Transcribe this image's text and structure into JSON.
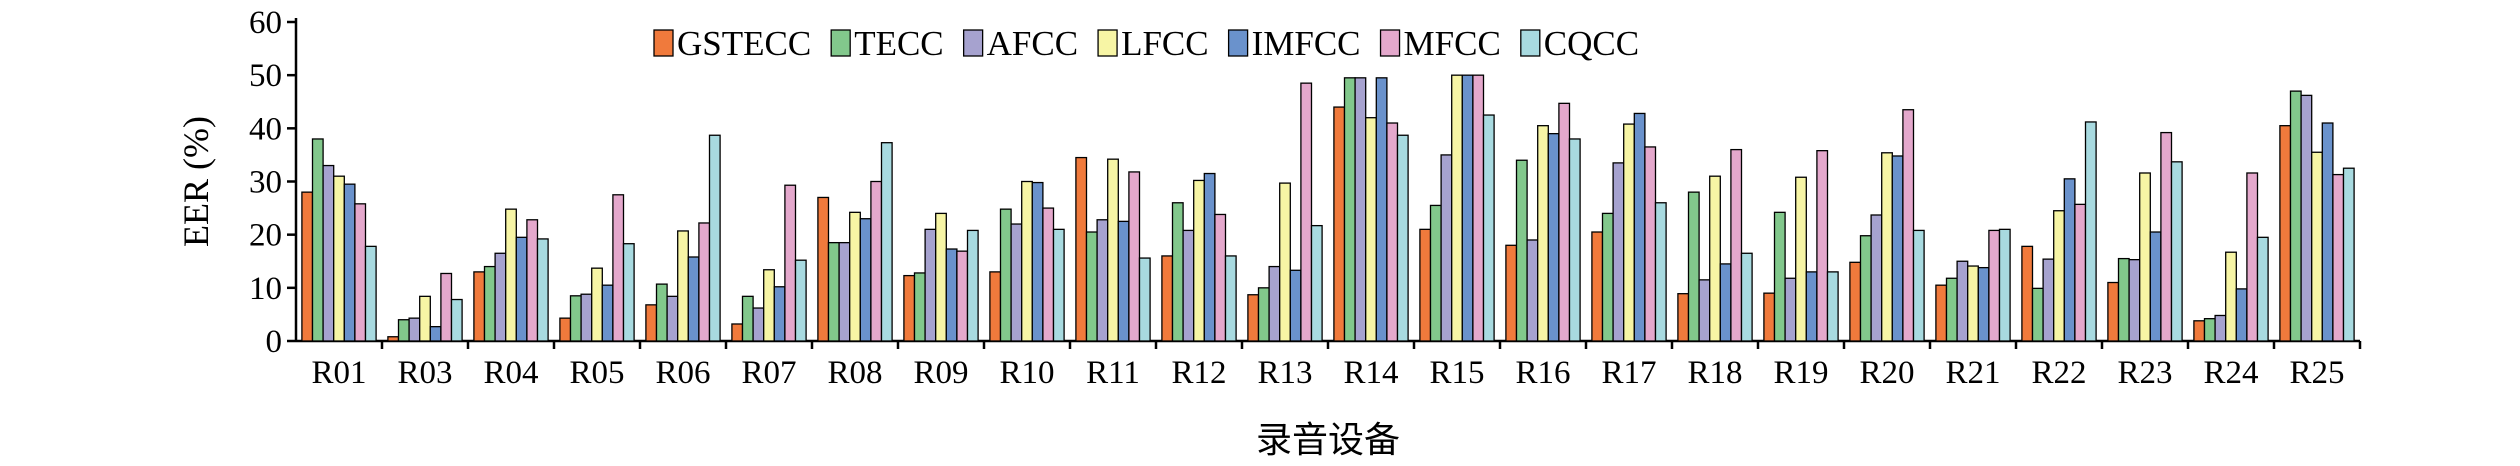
{
  "chart_data": {
    "type": "bar",
    "ylabel": "EER (%)",
    "xlabel": "录音设备",
    "ylim": [
      0,
      60
    ],
    "yticks": [
      "0",
      "10",
      "20",
      "30",
      "40",
      "50",
      "60"
    ],
    "legend_position": "top-center",
    "grid": false,
    "categories": [
      "R01",
      "R03",
      "R04",
      "R05",
      "R06",
      "R07",
      "R08",
      "R09",
      "R10",
      "R11",
      "R12",
      "R13",
      "R14",
      "R15",
      "R16",
      "R17",
      "R18",
      "R19",
      "R20",
      "R21",
      "R22",
      "R23",
      "R24",
      "R25"
    ],
    "series": [
      {
        "name": "GSTECC",
        "color": "#f07a3c",
        "values": [
          28,
          0.8,
          13,
          4.3,
          6.8,
          3.2,
          27,
          12.3,
          13,
          34.5,
          16,
          8.7,
          44,
          21,
          18,
          20.5,
          8.9,
          9,
          14.8,
          10.5,
          17.8,
          11,
          3.8,
          40.5
        ]
      },
      {
        "name": "TECC",
        "color": "#82c88c",
        "values": [
          38,
          4,
          14,
          8.5,
          10.7,
          8.4,
          18.5,
          12.8,
          24.8,
          20.5,
          26,
          10,
          49.5,
          25.5,
          34,
          24,
          28,
          24.2,
          19.8,
          11.8,
          9.9,
          15.5,
          4.2,
          47
        ]
      },
      {
        "name": "AFCC",
        "color": "#a6a2cf",
        "values": [
          33,
          4.3,
          16.5,
          8.8,
          8.4,
          6.2,
          18.5,
          21,
          22,
          22.8,
          20.8,
          14,
          49.5,
          35,
          19,
          33.5,
          11.5,
          11.8,
          23.7,
          15,
          15.4,
          15.3,
          4.8,
          46.2
        ]
      },
      {
        "name": "LFCC",
        "color": "#f7f5a5",
        "values": [
          31,
          8.4,
          24.8,
          13.7,
          20.7,
          13.4,
          24.2,
          24,
          30,
          34.2,
          30.2,
          29.7,
          42,
          50,
          40.5,
          40.8,
          31,
          30.8,
          35.4,
          14.1,
          24.5,
          31.6,
          16.7,
          35.5
        ]
      },
      {
        "name": "IMFCC",
        "color": "#6a92cc",
        "values": [
          29.5,
          2.7,
          19.5,
          10.5,
          15.8,
          10.2,
          23,
          17.3,
          29.8,
          22.5,
          31.5,
          13.3,
          49.5,
          50,
          39,
          42.8,
          14.5,
          13,
          34.8,
          13.8,
          30.5,
          20.5,
          9.8,
          41
        ]
      },
      {
        "name": "MFCC",
        "color": "#e4a8cc",
        "values": [
          25.8,
          12.7,
          22.8,
          27.5,
          22.2,
          29.3,
          30,
          16.9,
          25,
          31.8,
          23.8,
          48.5,
          41,
          50,
          44.7,
          36.5,
          36,
          35.8,
          43.5,
          20.8,
          25.7,
          39.2,
          31.6,
          31.3
        ]
      },
      {
        "name": "CQCC",
        "color": "#a8dae0",
        "values": [
          17.8,
          7.8,
          19.2,
          18.3,
          38.7,
          15.2,
          37.3,
          20.8,
          21,
          15.6,
          16,
          21.7,
          38.7,
          42.5,
          38,
          26,
          16.5,
          13,
          20.8,
          21,
          41.2,
          33.7,
          19.5,
          32.5
        ]
      }
    ]
  }
}
